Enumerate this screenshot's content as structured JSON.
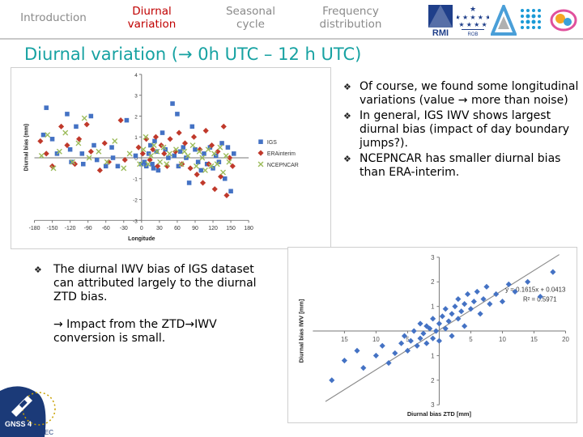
{
  "nav": {
    "tabs": [
      {
        "label": "Introduction",
        "active": false
      },
      {
        "label": "Diurnal variation",
        "active": true
      },
      {
        "label": "Seasonal cycle",
        "active": false
      },
      {
        "label": "Frequency distribution",
        "active": false
      }
    ],
    "logos": {
      "rmi": "RMI",
      "rob_caption": "ROB"
    }
  },
  "title": "Diurnal variation (→ 0h UTC – 12 h UTC)",
  "right_bullets": [
    "Of course, we found some longitudinal variations (value → more than noise)",
    "In general, IGS IWV shows largest diurnal bias (impact of day boundary jumps?).",
    "NCEPNCAR has smaller diurnal bias than ERA-interim."
  ],
  "left_bullets": [
    "The diurnal IWV bias of IGS dataset can attributed largely to the diurnal ZTD bias."
  ],
  "left_sub": "→ Impact from the ZTD→IWV conversion is small.",
  "footer": {
    "logo_text": "GNSS 4",
    "logo_sub": "SWEC"
  },
  "chart_data": [
    {
      "type": "scatter",
      "title": "",
      "xlabel": "Longitude",
      "ylabel": "Diurnal bias (mm)",
      "xlim": [
        -180,
        180
      ],
      "ylim": [
        -3,
        4
      ],
      "x_ticks": [
        "-180",
        "-150",
        "-120",
        "-90",
        "-60",
        "-30",
        "0",
        "30",
        "60",
        "90",
        "120",
        "150",
        "180"
      ],
      "y_ticks": [
        "-3",
        "-2",
        "-1",
        "0",
        "1",
        "2",
        "3",
        "4"
      ],
      "legend": "right",
      "grid": false,
      "series": [
        {
          "name": "IGS",
          "color": "#4472c4",
          "marker": "square",
          "points": [
            [
              -165,
              1.1
            ],
            [
              -160,
              2.4
            ],
            [
              -150,
              0.9
            ],
            [
              -142,
              0.2
            ],
            [
              -125,
              2.1
            ],
            [
              -120,
              0.4
            ],
            [
              -118,
              -0.2
            ],
            [
              -110,
              1.5
            ],
            [
              -100,
              0.2
            ],
            [
              -98,
              -0.3
            ],
            [
              -85,
              2.0
            ],
            [
              -80,
              0.6
            ],
            [
              -75,
              -0.1
            ],
            [
              -60,
              -0.4
            ],
            [
              -50,
              0.5
            ],
            [
              -48,
              0.0
            ],
            [
              -40,
              -0.4
            ],
            [
              -25,
              1.8
            ],
            [
              -10,
              0.1
            ],
            [
              0,
              -0.3
            ],
            [
              5,
              -0.2
            ],
            [
              8,
              -0.4
            ],
            [
              12,
              0.2
            ],
            [
              15,
              0.6
            ],
            [
              18,
              -0.3
            ],
            [
              20,
              -0.5
            ],
            [
              22,
              0.8
            ],
            [
              25,
              0.3
            ],
            [
              28,
              -0.6
            ],
            [
              35,
              1.2
            ],
            [
              40,
              0.4
            ],
            [
              45,
              0.0
            ],
            [
              52,
              2.6
            ],
            [
              55,
              0.1
            ],
            [
              60,
              2.1
            ],
            [
              62,
              -0.4
            ],
            [
              65,
              0.3
            ],
            [
              70,
              0.5
            ],
            [
              75,
              0.0
            ],
            [
              80,
              -1.2
            ],
            [
              85,
              1.5
            ],
            [
              90,
              0.4
            ],
            [
              95,
              -0.2
            ],
            [
              100,
              -0.6
            ],
            [
              105,
              0.2
            ],
            [
              110,
              -0.3
            ],
            [
              115,
              0.5
            ],
            [
              120,
              -0.5
            ],
            [
              125,
              0.1
            ],
            [
              130,
              -0.2
            ],
            [
              135,
              0.7
            ],
            [
              140,
              -1.0
            ],
            [
              145,
              0.5
            ],
            [
              150,
              -1.6
            ],
            [
              155,
              0.2
            ]
          ]
        },
        {
          "name": "ERAinterim",
          "color": "#c0392b",
          "marker": "diamond",
          "points": [
            [
              -170,
              0.8
            ],
            [
              -160,
              0.2
            ],
            [
              -150,
              -0.4
            ],
            [
              -135,
              1.5
            ],
            [
              -125,
              0.6
            ],
            [
              -112,
              -0.3
            ],
            [
              -105,
              0.9
            ],
            [
              -92,
              1.6
            ],
            [
              -85,
              0.3
            ],
            [
              -70,
              -0.6
            ],
            [
              -62,
              0.7
            ],
            [
              -55,
              -0.2
            ],
            [
              -35,
              1.8
            ],
            [
              -28,
              -0.1
            ],
            [
              -5,
              0.5
            ],
            [
              2,
              0.2
            ],
            [
              8,
              0.9
            ],
            [
              14,
              -0.1
            ],
            [
              19,
              0.4
            ],
            [
              24,
              1.0
            ],
            [
              27,
              -0.4
            ],
            [
              33,
              0.6
            ],
            [
              38,
              0.2
            ],
            [
              43,
              -0.4
            ],
            [
              48,
              0.9
            ],
            [
              57,
              0.3
            ],
            [
              63,
              1.2
            ],
            [
              68,
              -0.3
            ],
            [
              73,
              0.7
            ],
            [
              82,
              -0.5
            ],
            [
              88,
              1.0
            ],
            [
              93,
              -0.8
            ],
            [
              98,
              0.4
            ],
            [
              103,
              -1.2
            ],
            [
              108,
              1.3
            ],
            [
              113,
              -0.3
            ],
            [
              118,
              0.6
            ],
            [
              123,
              -1.5
            ],
            [
              128,
              0.3
            ],
            [
              133,
              -0.9
            ],
            [
              138,
              1.5
            ],
            [
              143,
              -1.8
            ],
            [
              148,
              0.0
            ],
            [
              153,
              -0.4
            ]
          ]
        },
        {
          "name": "NCEPNCAR",
          "color": "#9bbb59",
          "marker": "x",
          "points": [
            [
              -168,
              0.1
            ],
            [
              -158,
              1.1
            ],
            [
              -148,
              -0.5
            ],
            [
              -138,
              0.3
            ],
            [
              -128,
              1.2
            ],
            [
              -116,
              -0.2
            ],
            [
              -106,
              0.7
            ],
            [
              -96,
              1.9
            ],
            [
              -88,
              0.0
            ],
            [
              -72,
              0.3
            ],
            [
              -58,
              -0.2
            ],
            [
              -45,
              0.8
            ],
            [
              -30,
              -0.5
            ],
            [
              -20,
              0.2
            ],
            [
              -3,
              -0.3
            ],
            [
              3,
              0.4
            ],
            [
              7,
              1.0
            ],
            [
              11,
              -0.3
            ],
            [
              16,
              0.1
            ],
            [
              21,
              0.6
            ],
            [
              26,
              0.3
            ],
            [
              31,
              -0.2
            ],
            [
              37,
              0.5
            ],
            [
              42,
              -0.3
            ],
            [
              47,
              0.2
            ],
            [
              58,
              0.4
            ],
            [
              67,
              -0.3
            ],
            [
              72,
              0.3
            ],
            [
              78,
              0.1
            ],
            [
              86,
              0.6
            ],
            [
              92,
              -0.4
            ],
            [
              97,
              0.3
            ],
            [
              102,
              0.0
            ],
            [
              107,
              -0.6
            ],
            [
              112,
              0.4
            ],
            [
              117,
              -0.4
            ],
            [
              122,
              0.2
            ],
            [
              127,
              -0.3
            ],
            [
              132,
              0.5
            ],
            [
              137,
              -0.7
            ],
            [
              142,
              0.1
            ],
            [
              147,
              -0.2
            ]
          ]
        }
      ]
    },
    {
      "type": "scatter",
      "title": "",
      "xlabel": "Diurnal bias ZTD [mm]",
      "ylabel": "Diurnal bias IWV [mm]",
      "xlim": [
        -20,
        20
      ],
      "ylim": [
        -3,
        3
      ],
      "x_tick_labels": [
        "15",
        "10",
        "5",
        "5",
        "10",
        "15",
        "20"
      ],
      "y_tick_labels": [
        "3",
        "2",
        "1",
        "1",
        "2",
        "3"
      ],
      "trendline_equation": "y = 0.1615x + 0.0413",
      "r_squared": "R² = 0.5971",
      "trendline": {
        "slope": 0.1615,
        "intercept": 0.0413
      },
      "grid": false,
      "series": [
        {
          "name": "",
          "color": "#4472c4",
          "marker": "diamond",
          "points": [
            [
              -17,
              -2.0
            ],
            [
              -15,
              -1.2
            ],
            [
              -13,
              -0.8
            ],
            [
              -12,
              -1.5
            ],
            [
              -10,
              -1.0
            ],
            [
              -9,
              -0.6
            ],
            [
              -8,
              -1.3
            ],
            [
              -7,
              -0.9
            ],
            [
              -6,
              -0.5
            ],
            [
              -5.5,
              -0.2
            ],
            [
              -5,
              -0.8
            ],
            [
              -4.5,
              -0.4
            ],
            [
              -4,
              0.0
            ],
            [
              -3.5,
              -0.6
            ],
            [
              -3,
              -0.3
            ],
            [
              -3,
              0.3
            ],
            [
              -2.5,
              -0.1
            ],
            [
              -2,
              0.2
            ],
            [
              -2,
              -0.5
            ],
            [
              -1.5,
              0.1
            ],
            [
              -1,
              -0.3
            ],
            [
              -1,
              0.5
            ],
            [
              -0.5,
              0.0
            ],
            [
              0,
              0.3
            ],
            [
              0,
              -0.4
            ],
            [
              0.5,
              0.6
            ],
            [
              1,
              0.1
            ],
            [
              1,
              0.9
            ],
            [
              1.5,
              0.4
            ],
            [
              2,
              0.7
            ],
            [
              2,
              -0.2
            ],
            [
              2.5,
              1.0
            ],
            [
              3,
              0.5
            ],
            [
              3,
              1.3
            ],
            [
              3.5,
              0.8
            ],
            [
              4,
              1.1
            ],
            [
              4,
              0.2
            ],
            [
              4.5,
              1.5
            ],
            [
              5,
              0.9
            ],
            [
              5.5,
              1.2
            ],
            [
              6,
              1.6
            ],
            [
              6.5,
              0.7
            ],
            [
              7,
              1.3
            ],
            [
              7.5,
              1.8
            ],
            [
              8,
              1.1
            ],
            [
              9,
              1.5
            ],
            [
              10,
              1.2
            ],
            [
              11,
              1.9
            ],
            [
              12,
              1.6
            ],
            [
              14,
              2.0
            ],
            [
              16,
              1.4
            ],
            [
              18,
              2.4
            ]
          ]
        }
      ]
    }
  ]
}
